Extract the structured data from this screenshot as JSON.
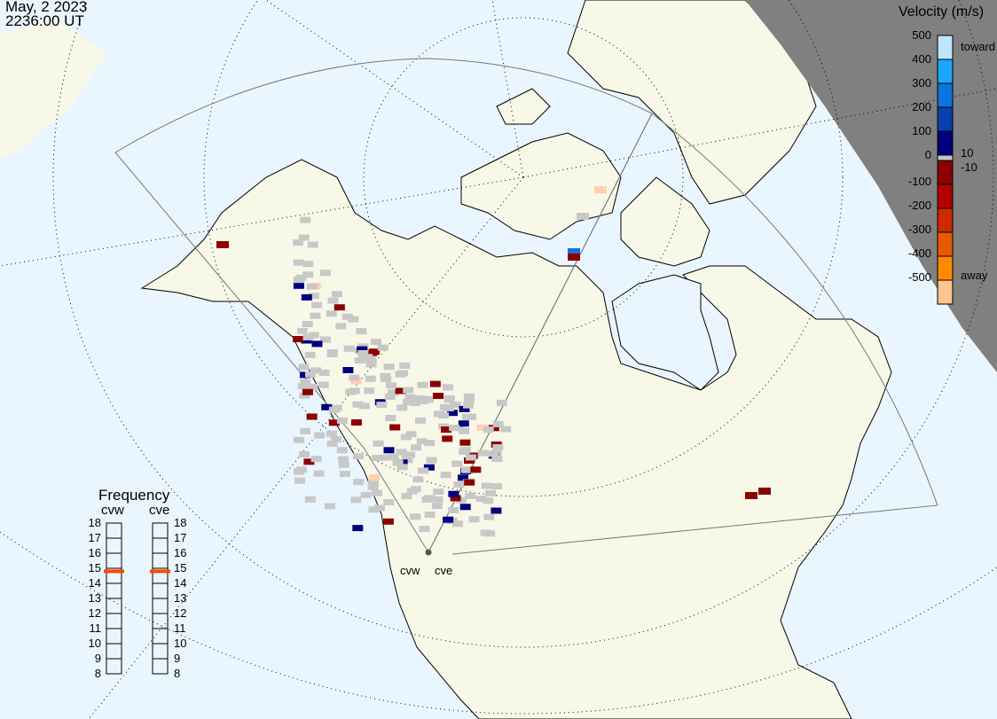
{
  "header": {
    "date": "May, 2 2023",
    "time": "2236:00 UT"
  },
  "velocity_scale": {
    "title": "Velocity (m/s)",
    "ticks": [
      "500",
      "400",
      "300",
      "200",
      "100",
      "0",
      "-100",
      "-200",
      "-300",
      "-400",
      "-500"
    ],
    "toward_label": "toward",
    "away_label": "away",
    "pos_threshold": "10",
    "neg_threshold": "-10",
    "colors": [
      "#bfe6ff",
      "#1aa8ff",
      "#0a74dc",
      "#0a3fae",
      "#00007f",
      "#8b0000",
      "#b30000",
      "#cc2a00",
      "#e85a00",
      "#ff8a00",
      "#ffc590"
    ],
    "ground_scatter_color": "#c8c8c8"
  },
  "frequency": {
    "title": "Frequency",
    "radars": [
      {
        "name": "cvw",
        "value_mhz": 14.8
      },
      {
        "name": "cve",
        "value_mhz": 14.8
      }
    ],
    "ticks": [
      "18",
      "17",
      "16",
      "15",
      "14",
      "13",
      "12",
      "11",
      "10",
      "9",
      "8"
    ],
    "range": [
      8,
      18
    ],
    "marker_color": "#ff4500"
  },
  "radar_sites": {
    "west": "cvw",
    "east": "cve"
  },
  "colors": {
    "ocean": "#eaf6ff",
    "land": "#f8f8e8",
    "night": "#808080"
  }
}
